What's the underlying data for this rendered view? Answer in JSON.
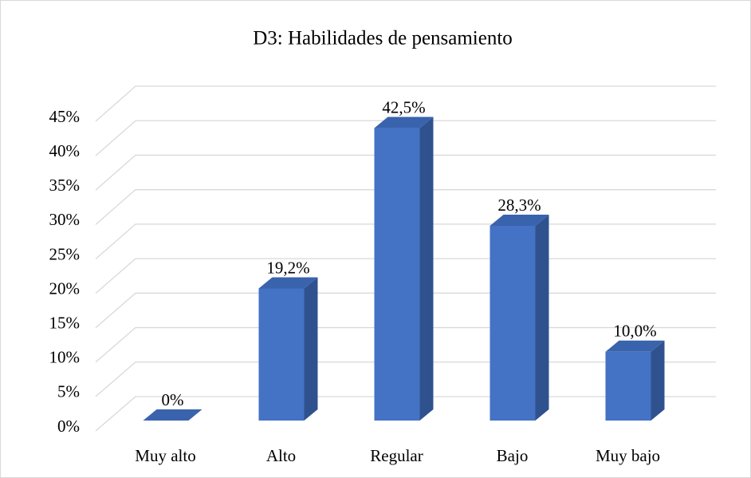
{
  "chart_data": {
    "type": "bar",
    "title": "D3: Habilidades de pensamiento",
    "categories": [
      "Muy alto",
      "Alto",
      "Regular",
      "Bajo",
      "Muy bajo"
    ],
    "values": [
      0,
      19.2,
      42.5,
      28.3,
      10.0
    ],
    "value_labels": [
      "0%",
      "19,2%",
      "42,5%",
      "28,3%",
      "10,0%"
    ],
    "color": "#4472c4",
    "ylim": [
      0,
      45
    ],
    "yticks": [
      {
        "value": 0,
        "label": "0%"
      },
      {
        "value": 5,
        "label": "5%"
      },
      {
        "value": 10,
        "label": "10%"
      },
      {
        "value": 15,
        "label": "15%"
      },
      {
        "value": 20,
        "label": "20%"
      },
      {
        "value": 25,
        "label": "25%"
      },
      {
        "value": 30,
        "label": "30%"
      },
      {
        "value": 35,
        "label": "35%"
      },
      {
        "value": 40,
        "label": "40%"
      },
      {
        "value": 45,
        "label": "45%"
      }
    ],
    "grid": true
  }
}
